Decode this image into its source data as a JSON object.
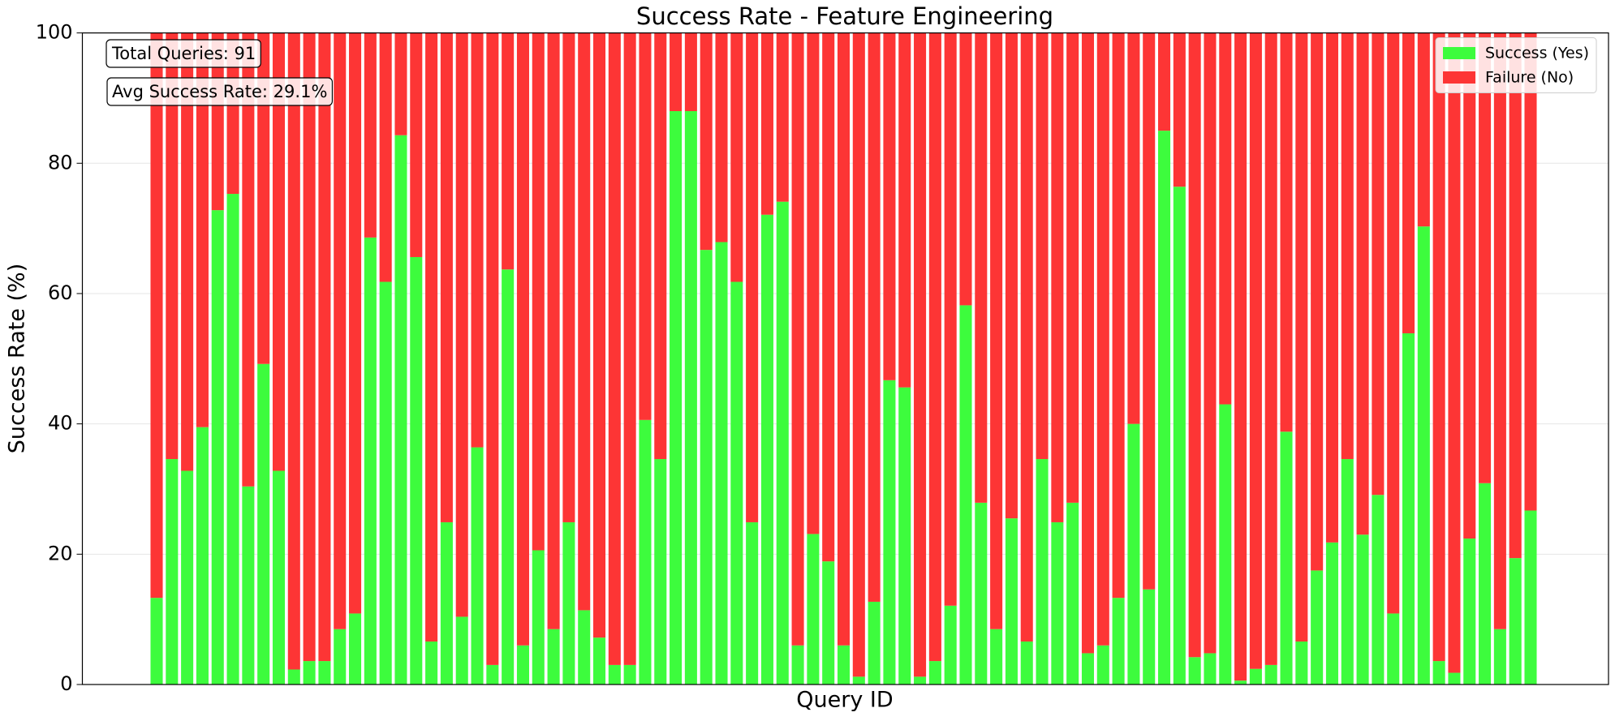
{
  "chart_data": {
    "type": "stacked_bar",
    "title": "Success Rate - Feature Engineering",
    "xlabel": "Query ID",
    "ylabel": "Success Rate (%)",
    "annotations": [
      "Total Queries: 91",
      "Avg Success Rate: 29.1%"
    ],
    "categories": [
      null,
      null,
      null,
      null,
      null,
      null,
      null,
      null,
      null,
      null,
      null,
      null,
      null,
      null,
      null,
      null,
      null,
      null,
      null,
      null,
      null,
      null,
      null,
      null,
      null,
      null,
      null,
      null,
      null,
      null,
      null,
      null,
      null,
      null,
      null,
      null,
      null,
      null,
      null,
      null,
      null,
      null,
      null,
      null,
      null,
      null,
      null,
      null,
      null,
      null,
      null,
      null,
      null,
      null,
      null,
      null,
      null,
      null,
      null,
      null,
      null,
      null,
      null,
      null,
      null,
      null,
      null,
      null,
      null,
      null,
      null,
      null,
      null,
      null,
      null,
      null,
      null,
      null,
      null,
      null,
      null,
      null,
      null,
      null,
      null,
      null,
      null,
      null,
      null,
      null,
      null
    ],
    "series": [
      {
        "name": "Success (Yes)",
        "color": "#3dfc3d",
        "values": [
          13.3,
          34.6,
          32.8,
          39.5,
          72.8,
          75.3,
          30.4,
          49.2,
          32.8,
          2.3,
          3.6,
          3.6,
          8.5,
          10.9,
          68.6,
          61.8,
          84.3,
          65.6,
          6.6,
          24.9,
          10.4,
          36.4,
          3.0,
          63.7,
          6.0,
          20.6,
          8.5,
          24.9,
          11.4,
          7.2,
          3.0,
          3.0,
          40.6,
          34.6,
          88.0,
          88.0,
          66.7,
          67.9,
          61.8,
          24.9,
          72.1,
          74.1,
          6.0,
          23.1,
          18.9,
          6.0,
          1.2,
          12.7,
          46.7,
          45.6,
          1.2,
          3.6,
          12.1,
          58.2,
          27.9,
          8.5,
          25.5,
          6.6,
          34.6,
          24.9,
          27.9,
          4.8,
          6.0,
          13.3,
          40.0,
          14.6,
          85.0,
          76.4,
          4.2,
          4.8,
          43.0,
          0.6,
          2.4,
          3.0,
          38.8,
          6.6,
          17.5,
          21.8,
          34.6,
          23.0,
          29.1,
          10.9,
          53.9,
          70.3,
          3.6,
          1.8,
          22.4,
          30.9,
          8.5,
          19.4,
          26.7
        ]
      },
      {
        "name": "Failure (No)",
        "color": "#fd3535",
        "values": [
          86.7,
          65.4,
          67.2,
          60.5,
          27.2,
          24.7,
          69.6,
          50.8,
          67.2,
          97.7,
          96.4,
          96.4,
          91.5,
          89.1,
          31.4,
          38.2,
          15.7,
          34.4,
          93.4,
          75.1,
          89.6,
          63.6,
          97.0,
          36.3,
          94.0,
          79.4,
          91.5,
          75.1,
          88.6,
          92.8,
          97.0,
          97.0,
          59.4,
          65.4,
          12.0,
          12.0,
          33.3,
          32.1,
          38.2,
          75.1,
          27.9,
          25.9,
          94.0,
          76.9,
          81.1,
          94.0,
          98.8,
          87.3,
          53.3,
          54.4,
          98.8,
          96.4,
          87.9,
          41.8,
          72.1,
          91.5,
          74.5,
          93.4,
          65.4,
          75.1,
          72.1,
          95.2,
          94.0,
          86.7,
          60.0,
          85.4,
          15.0,
          23.6,
          95.8,
          95.2,
          57.0,
          99.4,
          97.6,
          97.0,
          61.2,
          93.4,
          82.5,
          78.2,
          65.4,
          77.0,
          70.9,
          89.1,
          46.1,
          29.7,
          96.4,
          98.2,
          77.6,
          69.1,
          91.5,
          80.6,
          73.3
        ]
      }
    ],
    "ylim": [
      0,
      100
    ],
    "yticks": [
      0,
      20,
      40,
      60,
      80,
      100
    ],
    "grid": true,
    "legend": "upper right"
  }
}
